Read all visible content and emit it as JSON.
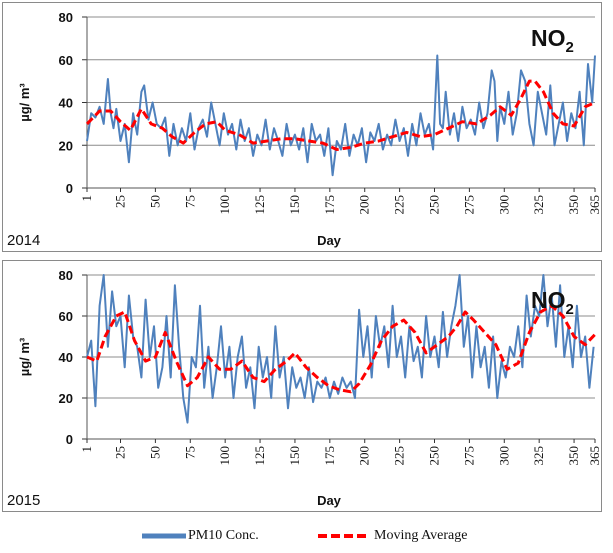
{
  "colors": {
    "pm10": "#4f81bd",
    "moving_average": "#ff0000",
    "grid": "#8c8c8c"
  },
  "chart_data": [
    {
      "type": "line",
      "year_label": "2014",
      "species_main": "NO",
      "species_sub": "2",
      "ylabel": "µg/ m³",
      "xlabel": "Day",
      "ylim": [
        0,
        80
      ],
      "xlim": [
        1,
        365
      ],
      "yticks": [
        0,
        20,
        40,
        60,
        80
      ],
      "xticks": [
        1,
        25,
        50,
        75,
        100,
        125,
        150,
        175,
        200,
        225,
        250,
        275,
        300,
        325,
        350,
        365
      ],
      "grid": true,
      "series": [
        {
          "name": "PM10 Conc.",
          "style": "solid",
          "x": [
            1,
            4,
            7,
            10,
            13,
            16,
            18,
            20,
            22,
            25,
            28,
            31,
            34,
            37,
            40,
            42,
            45,
            48,
            51,
            54,
            57,
            60,
            63,
            66,
            69,
            72,
            75,
            78,
            81,
            84,
            87,
            90,
            93,
            96,
            99,
            102,
            105,
            108,
            111,
            114,
            117,
            120,
            123,
            126,
            129,
            132,
            135,
            138,
            141,
            144,
            147,
            150,
            153,
            156,
            159,
            162,
            165,
            168,
            171,
            174,
            177,
            180,
            183,
            186,
            189,
            192,
            195,
            198,
            201,
            204,
            207,
            210,
            213,
            216,
            219,
            222,
            225,
            228,
            231,
            234,
            237,
            240,
            243,
            246,
            249,
            252,
            254,
            256,
            258,
            261,
            264,
            267,
            270,
            273,
            276,
            279,
            282,
            285,
            288,
            291,
            293,
            295,
            297,
            300,
            303,
            306,
            309,
            312,
            315,
            318,
            321,
            324,
            327,
            330,
            333,
            336,
            339,
            342,
            345,
            348,
            351,
            354,
            357,
            360,
            363,
            365
          ],
          "y": [
            22,
            35,
            33,
            38,
            30,
            51,
            35,
            28,
            37,
            22,
            30,
            12,
            35,
            25,
            45,
            48,
            32,
            40,
            30,
            28,
            33,
            15,
            30,
            20,
            28,
            22,
            35,
            18,
            28,
            32,
            24,
            40,
            30,
            20,
            35,
            25,
            30,
            18,
            32,
            22,
            28,
            15,
            25,
            20,
            32,
            18,
            28,
            22,
            15,
            30,
            20,
            25,
            18,
            28,
            12,
            30,
            22,
            25,
            15,
            28,
            6,
            22,
            18,
            30,
            15,
            25,
            20,
            28,
            12,
            26,
            22,
            30,
            18,
            25,
            20,
            32,
            22,
            28,
            15,
            30,
            20,
            35,
            25,
            30,
            18,
            62,
            30,
            28,
            45,
            25,
            35,
            22,
            38,
            28,
            32,
            25,
            40,
            28,
            35,
            55,
            50,
            22,
            38,
            30,
            45,
            25,
            35,
            55,
            50,
            30,
            20,
            45,
            35,
            25,
            48,
            20,
            30,
            40,
            22,
            35,
            28,
            45,
            20,
            58,
            40,
            62
          ]
        },
        {
          "name": "Moving Average",
          "style": "dashed",
          "x": [
            1,
            10,
            18,
            25,
            32,
            40,
            47,
            55,
            62,
            70,
            78,
            86,
            94,
            100,
            110,
            120,
            130,
            140,
            150,
            160,
            170,
            180,
            190,
            200,
            210,
            220,
            230,
            240,
            250,
            260,
            270,
            280,
            290,
            297,
            305,
            312,
            318,
            322,
            328,
            335,
            342,
            350,
            358,
            365
          ],
          "y": [
            30,
            36,
            36,
            31,
            27,
            37,
            30,
            28,
            24,
            21,
            26,
            30,
            31,
            27,
            25,
            21,
            22,
            23,
            23,
            22,
            21,
            18,
            19,
            21,
            22,
            24,
            26,
            24,
            25,
            28,
            31,
            30,
            34,
            38,
            34,
            42,
            50,
            50,
            45,
            35,
            30,
            29,
            38,
            40
          ]
        }
      ]
    },
    {
      "type": "line",
      "year_label": "2015",
      "species_main": "NO",
      "species_sub": "2",
      "ylabel": "µg/ m³",
      "xlabel": "Day",
      "ylim": [
        0,
        80
      ],
      "xlim": [
        1,
        365
      ],
      "yticks": [
        0,
        20,
        40,
        60,
        80
      ],
      "xticks": [
        1,
        25,
        50,
        75,
        100,
        125,
        150,
        175,
        200,
        225,
        250,
        275,
        300,
        325,
        350,
        365
      ],
      "grid": true,
      "series": [
        {
          "name": "PM10 Conc.",
          "style": "solid",
          "x": [
            1,
            4,
            7,
            10,
            13,
            16,
            19,
            22,
            25,
            28,
            31,
            34,
            37,
            40,
            43,
            46,
            49,
            52,
            55,
            58,
            61,
            64,
            67,
            70,
            73,
            76,
            79,
            82,
            85,
            88,
            91,
            94,
            97,
            100,
            103,
            106,
            109,
            112,
            115,
            118,
            121,
            124,
            127,
            130,
            133,
            136,
            139,
            142,
            145,
            148,
            151,
            154,
            157,
            160,
            163,
            166,
            169,
            172,
            175,
            178,
            181,
            184,
            187,
            190,
            193,
            196,
            199,
            202,
            205,
            208,
            211,
            214,
            217,
            220,
            223,
            226,
            229,
            232,
            235,
            238,
            241,
            244,
            247,
            250,
            253,
            256,
            259,
            262,
            265,
            268,
            271,
            274,
            277,
            280,
            283,
            286,
            289,
            292,
            295,
            298,
            301,
            304,
            307,
            310,
            313,
            316,
            319,
            322,
            325,
            328,
            331,
            334,
            337,
            340,
            343,
            346,
            349,
            352,
            355,
            358,
            361,
            364
          ],
          "y": [
            40,
            48,
            16,
            65,
            80,
            45,
            72,
            55,
            60,
            35,
            70,
            50,
            45,
            30,
            68,
            40,
            55,
            25,
            35,
            60,
            30,
            75,
            45,
            20,
            8,
            40,
            35,
            65,
            25,
            45,
            20,
            35,
            55,
            30,
            45,
            20,
            40,
            50,
            25,
            35,
            15,
            45,
            30,
            40,
            20,
            55,
            30,
            40,
            15,
            35,
            25,
            30,
            20,
            35,
            18,
            28,
            25,
            30,
            20,
            28,
            22,
            30,
            25,
            28,
            20,
            63,
            40,
            55,
            30,
            60,
            45,
            55,
            35,
            65,
            40,
            50,
            30,
            55,
            38,
            45,
            30,
            60,
            40,
            50,
            35,
            62,
            40,
            55,
            65,
            80,
            45,
            60,
            30,
            55,
            35,
            45,
            25,
            50,
            20,
            38,
            30,
            45,
            40,
            55,
            35,
            70,
            50,
            65,
            60,
            80,
            55,
            70,
            45,
            75,
            40,
            55,
            35,
            65,
            40,
            50,
            25,
            45
          ]
        },
        {
          "name": "Moving Average",
          "style": "dashed",
          "x": [
            1,
            8,
            14,
            22,
            28,
            35,
            43,
            50,
            57,
            65,
            73,
            80,
            88,
            96,
            104,
            112,
            120,
            128,
            136,
            144,
            150,
            158,
            166,
            174,
            182,
            190,
            196,
            204,
            212,
            220,
            228,
            236,
            244,
            252,
            260,
            266,
            272,
            278,
            286,
            294,
            302,
            310,
            318,
            326,
            334,
            342,
            350,
            358,
            365
          ],
          "y": [
            40,
            38,
            50,
            60,
            62,
            48,
            38,
            40,
            52,
            38,
            26,
            30,
            40,
            34,
            34,
            38,
            30,
            28,
            34,
            38,
            42,
            35,
            30,
            26,
            24,
            23,
            27,
            36,
            48,
            55,
            58,
            52,
            42,
            46,
            50,
            55,
            62,
            58,
            52,
            46,
            34,
            37,
            52,
            62,
            65,
            60,
            50,
            46,
            51
          ]
        }
      ]
    }
  ],
  "legend": [
    {
      "label": "PM10 Conc.",
      "style": "solid"
    },
    {
      "label": "Moving Average",
      "style": "dashed"
    }
  ]
}
